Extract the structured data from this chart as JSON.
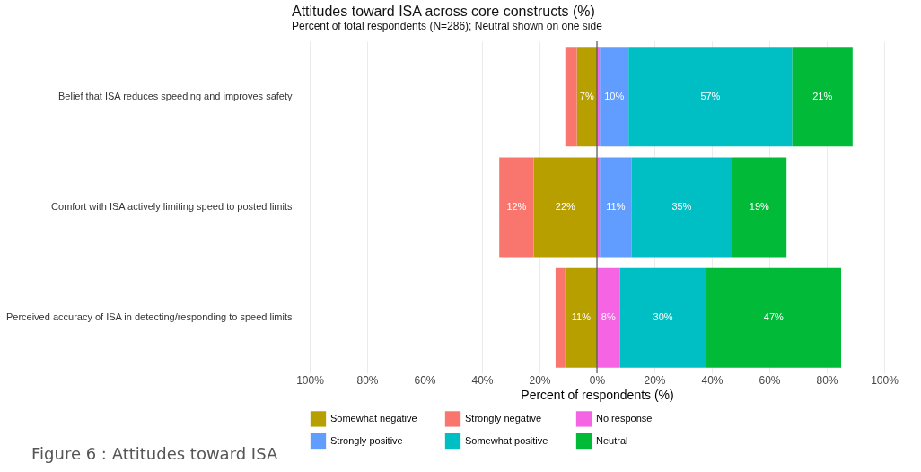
{
  "chart_data": {
    "type": "bar",
    "orientation": "horizontal",
    "title": "Attitudes toward ISA across core constructs (%)",
    "subtitle": "Percent of total respondents (N=286); Neutral shown on one side",
    "xlabel": "Percent of respondents (%)",
    "categories": [
      "Belief that ISA reduces speeding and improves safety",
      "Comfort with ISA actively limiting speed to posted limits",
      "Perceived accuracy of ISA in detecting/responding to speed limits"
    ],
    "series": [
      {
        "name": "Somewhat negative",
        "color": "#b79f00",
        "values": [
          7,
          22,
          11
        ],
        "base": [
          -7,
          -22,
          -11
        ],
        "value_labels": [
          "7%",
          "22%",
          "11%"
        ]
      },
      {
        "name": "Strongly negative",
        "color": "#f8766d",
        "values": [
          4,
          12,
          3.4
        ],
        "base": [
          -11,
          -34,
          -14.4
        ],
        "value_labels": [
          null,
          "12%",
          null
        ]
      },
      {
        "name": "No response",
        "color": "#f564e3",
        "values": [
          1,
          1,
          8
        ],
        "base": [
          0,
          0,
          0
        ],
        "value_labels": [
          null,
          null,
          "8%"
        ]
      },
      {
        "name": "Strongly positive",
        "color": "#619cff",
        "values": [
          10,
          11,
          null
        ],
        "base": [
          1,
          1,
          null
        ],
        "value_labels": [
          "10%",
          "11%",
          null
        ]
      },
      {
        "name": "Somewhat positive",
        "color": "#00bfc4",
        "values": [
          57,
          35,
          30
        ],
        "base": [
          11,
          12,
          8
        ],
        "value_labels": [
          "57%",
          "35%",
          "30%"
        ]
      },
      {
        "name": "Neutral",
        "color": "#00ba38",
        "values": [
          21,
          19,
          47
        ],
        "base": [
          68,
          47,
          38
        ],
        "value_labels": [
          "21%",
          "19%",
          "47%"
        ]
      }
    ],
    "xlim": [
      -100,
      100
    ],
    "xticks": [
      {
        "value": -100,
        "label": "100%"
      },
      {
        "value": -80,
        "label": "80%"
      },
      {
        "value": -60,
        "label": "60%"
      },
      {
        "value": -40,
        "label": "40%"
      },
      {
        "value": -20,
        "label": "20%"
      },
      {
        "value": 0,
        "label": "0%"
      },
      {
        "value": 20,
        "label": "20%"
      },
      {
        "value": 40,
        "label": "40%"
      },
      {
        "value": 60,
        "label": "60%"
      },
      {
        "value": 80,
        "label": "80%"
      },
      {
        "value": 100,
        "label": "100%"
      }
    ],
    "grid": "x",
    "legend": "bottom",
    "ref_lines": [
      {
        "axis": "x",
        "value": 0,
        "color": "#555555"
      }
    ],
    "annotations": [
      "Figure 6 : Attitudes toward ISA"
    ]
  }
}
